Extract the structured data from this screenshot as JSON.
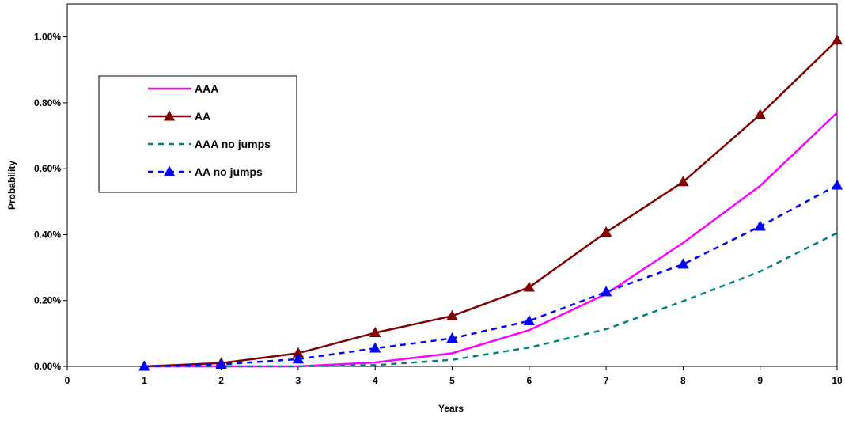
{
  "chart_data": {
    "type": "line",
    "xlabel": "Years",
    "ylabel": "Probability",
    "xlim": [
      0,
      10
    ],
    "ylim": [
      0,
      1.1
    ],
    "x_ticks": [
      "0",
      "1",
      "2",
      "3",
      "4",
      "5",
      "6",
      "7",
      "8",
      "9",
      "10"
    ],
    "y_ticks": [
      "0.00%",
      "0.20%",
      "0.40%",
      "0.60%",
      "0.80%",
      "1.00%"
    ],
    "y_tick_values": [
      0,
      0.2,
      0.4,
      0.6,
      0.8,
      1.0
    ],
    "y_unit": "%",
    "grid": false,
    "legend_position": "upper-left",
    "x": [
      1,
      2,
      3,
      4,
      5,
      6,
      7,
      8,
      9,
      10
    ],
    "series": [
      {
        "name": "AAA",
        "color": "#ff00ff",
        "style": "solid",
        "marker": "none",
        "values": [
          0.0,
          0.0,
          0.0,
          0.012,
          0.04,
          0.11,
          0.22,
          0.375,
          0.548,
          0.77
        ]
      },
      {
        "name": "AA",
        "color": "#800000",
        "style": "solid",
        "marker": "triangle",
        "values": [
          0.0,
          0.01,
          0.04,
          0.102,
          0.153,
          0.24,
          0.407,
          0.56,
          0.764,
          0.99
        ]
      },
      {
        "name": "AAA no jumps",
        "color": "#008080",
        "style": "dashed",
        "marker": "none",
        "values": [
          0.0,
          0.0,
          0.0,
          0.004,
          0.02,
          0.057,
          0.113,
          0.198,
          0.288,
          0.405
        ]
      },
      {
        "name": "AA no jumps",
        "color": "#0000ff",
        "style": "dashed",
        "marker": "triangle",
        "values": [
          0.0,
          0.006,
          0.022,
          0.055,
          0.085,
          0.138,
          0.226,
          0.31,
          0.425,
          0.55
        ]
      }
    ]
  }
}
